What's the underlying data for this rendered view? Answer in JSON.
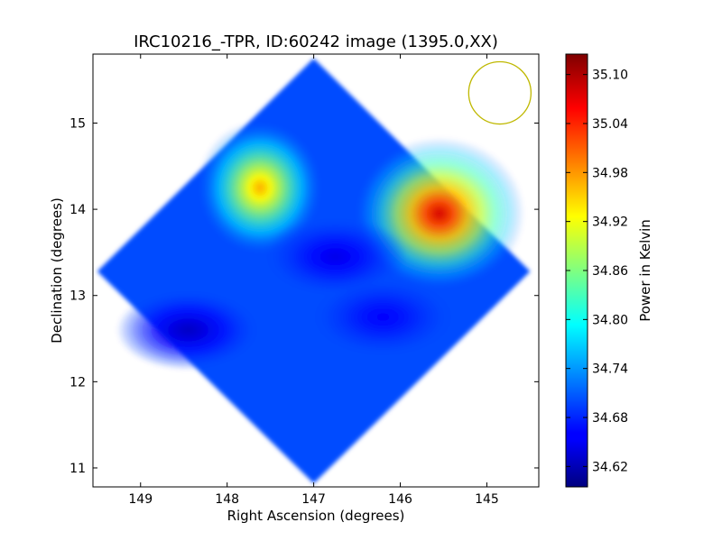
{
  "chart_data": {
    "type": "heatmap",
    "title": "IRC10216_-TPR, ID:60242 image (1395.0,XX)",
    "xlabel": "Right Ascension (degrees)",
    "ylabel": "Declination (degrees)",
    "xlim": [
      149.55,
      144.4
    ],
    "ylim": [
      10.78,
      15.8
    ],
    "xticks": [
      149,
      148,
      147,
      146,
      145
    ],
    "xtick_labels": [
      "149",
      "148",
      "147",
      "146",
      "145"
    ],
    "yticks": [
      11,
      12,
      13,
      14,
      15
    ],
    "ytick_labels": [
      "11",
      "12",
      "13",
      "14",
      "15"
    ],
    "colorbar": {
      "label": "Power in Kelvin",
      "colormap": "jet",
      "range": [
        34.595,
        35.125
      ],
      "ticks": [
        34.62,
        34.68,
        34.74,
        34.8,
        34.86,
        34.92,
        34.98,
        35.04,
        35.1
      ],
      "tick_labels": [
        "34.62",
        "34.68",
        "34.74",
        "34.80",
        "34.86",
        "34.92",
        "34.98",
        "35.04",
        "35.10"
      ]
    },
    "map_footprint": {
      "shape": "diamond",
      "center": [
        147.0,
        13.28
      ],
      "corners": {
        "top": [
          147.0,
          15.75
        ],
        "bottom": [
          147.0,
          10.82
        ],
        "left": [
          149.5,
          13.28
        ],
        "right": [
          144.5,
          13.28
        ]
      },
      "background_level": 34.7
    },
    "features": [
      {
        "kind": "peak",
        "ra": 145.55,
        "dec": 13.95,
        "value": 35.08
      },
      {
        "kind": "peak",
        "ra": 147.62,
        "dec": 14.25,
        "value": 34.97
      },
      {
        "kind": "trough",
        "ra": 148.45,
        "dec": 12.6,
        "value": 34.63
      },
      {
        "kind": "trough",
        "ra": 146.75,
        "dec": 13.45,
        "value": 34.65
      },
      {
        "kind": "trough",
        "ra": 146.2,
        "dec": 12.75,
        "value": 34.66
      }
    ],
    "beam_marker": {
      "shape": "circle",
      "ra": 144.85,
      "dec": 15.35,
      "radius_deg": 0.36,
      "color": "#bfb800"
    }
  }
}
